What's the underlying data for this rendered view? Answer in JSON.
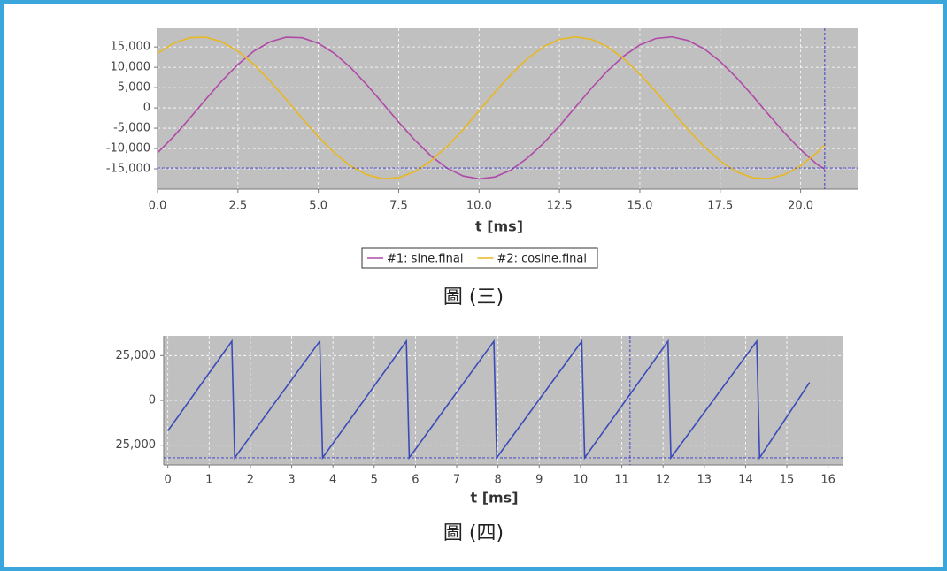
{
  "chart_data": [
    {
      "type": "line",
      "x": [
        0,
        0.5,
        1,
        1.5,
        2,
        2.5,
        3,
        3.5,
        4,
        4.5,
        5,
        5.5,
        6,
        6.5,
        7,
        7.5,
        8,
        8.5,
        9,
        9.5,
        10,
        10.5,
        11,
        11.5,
        12,
        12.5,
        13,
        13.5,
        14,
        14.5,
        15,
        15.5,
        16,
        16.5,
        17,
        17.5,
        18,
        18.5,
        19,
        19.5,
        20,
        20.5,
        20.75
      ],
      "series": [
        {
          "name": "#1: sine.final",
          "color": "#b04aa8",
          "values": [
            -11070,
            -7070,
            -2570,
            2110,
            6640,
            10690,
            13990,
            16280,
            17400,
            17270,
            15910,
            13410,
            9960,
            5780,
            1170,
            -3500,
            -7920,
            -11780,
            -14800,
            -16750,
            -17490,
            -16990,
            -15270,
            -12360,
            -8750,
            -4460,
            240,
            4890,
            9170,
            12760,
            15500,
            17100,
            17480,
            16600,
            14530,
            11420,
            7510,
            3080,
            -1600,
            -6160,
            -10290,
            -13810,
            -15070
          ]
        },
        {
          "name": "#2: cosine.final",
          "color": "#e8b820",
          "values": [
            13410,
            15910,
            17270,
            17400,
            16280,
            13990,
            10690,
            6640,
            2110,
            -2570,
            -7070,
            -11070,
            -14270,
            -16440,
            -17430,
            -17180,
            -15710,
            -13070,
            -9520,
            -5350,
            -700,
            3950,
            8330,
            12090,
            15040,
            16870,
            17500,
            16870,
            15040,
            12090,
            8330,
            3950,
            -700,
            -5350,
            -9520,
            -13070,
            -15710,
            -17180,
            -17430,
            -16440,
            -14270,
            -11070,
            -9080
          ]
        }
      ],
      "x_label": "t [ms]",
      "xlim": [
        0,
        21.8
      ],
      "xticks": [
        {
          "value": 0,
          "label": "0.0"
        },
        2.5,
        {
          "value": 5,
          "label": "5.0"
        },
        7.5,
        {
          "value": 10,
          "label": "10.0"
        },
        12.5,
        {
          "value": 15,
          "label": "15.0"
        },
        17.5,
        {
          "value": 20,
          "label": "20.0"
        }
      ],
      "ylim": [
        -20000,
        19600
      ],
      "yticks": [
        {
          "value": -15000,
          "label": "-15,000"
        },
        {
          "value": -10000,
          "label": "-10,000"
        },
        {
          "value": -5000,
          "label": "-5,000"
        },
        0,
        {
          "value": 5000,
          "label": "5,000"
        },
        {
          "value": 10000,
          "label": "10,000"
        },
        {
          "value": 15000,
          "label": "15,000"
        }
      ],
      "grid": true,
      "legend": "bottom",
      "crosshair": {
        "x": 20.75,
        "y": -14800
      },
      "caption": "圖 (三)"
    },
    {
      "type": "line",
      "x": [
        0,
        1.55,
        1.62,
        3.68,
        3.75,
        5.78,
        5.85,
        7.9,
        7.97,
        10.03,
        10.1,
        12.12,
        12.19,
        14.27,
        14.34,
        15.55
      ],
      "series": [
        {
          "color": "#3a4bb8",
          "values": [
            -17000,
            33000,
            -32000,
            33000,
            -32000,
            33000,
            -32000,
            33000,
            -32000,
            33000,
            -32000,
            33000,
            -32000,
            33000,
            -32000,
            10000
          ]
        }
      ],
      "x_label": "t [ms]",
      "xlim": [
        -0.1,
        16.35
      ],
      "xticks": [
        0,
        1,
        2,
        3,
        4,
        5,
        6,
        7,
        8,
        9,
        10,
        11,
        12,
        13,
        14,
        15,
        16
      ],
      "ylim": [
        -36000,
        36000
      ],
      "yticks": [
        {
          "value": -25000,
          "label": "-25,000"
        },
        0,
        {
          "value": 25000,
          "label": "25,000"
        }
      ],
      "grid": true,
      "crosshair": {
        "x": 11.2,
        "y": -32000
      },
      "caption": "圖 (四)"
    }
  ]
}
